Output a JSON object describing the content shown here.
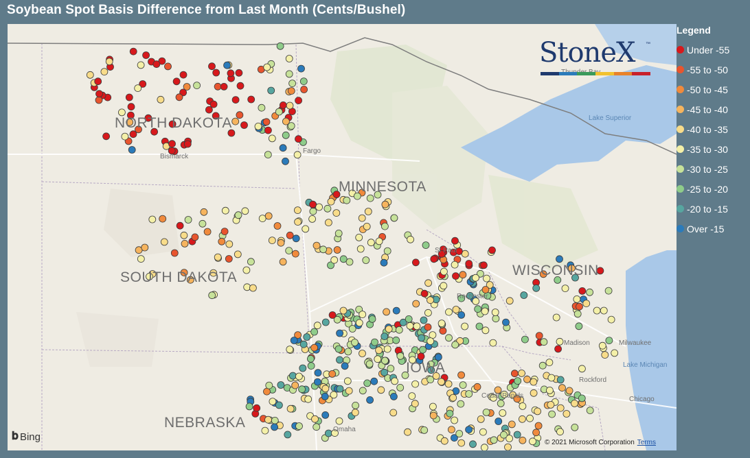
{
  "title": "Soybean Spot Basis Difference from Last Month (Cents/Bushel)",
  "legend": {
    "title": "Legend",
    "items": [
      {
        "label": "Under -55",
        "color": "#d7191c"
      },
      {
        "label": "-55 to -50",
        "color": "#e8552e"
      },
      {
        "label": "-50 to -45",
        "color": "#f08a3c"
      },
      {
        "label": "-45 to -40",
        "color": "#f6b45e"
      },
      {
        "label": "-40 to -35",
        "color": "#f8dc8a"
      },
      {
        "label": "-35 to -30",
        "color": "#f4f0a8"
      },
      {
        "label": "-30 to -25",
        "color": "#c7e29a"
      },
      {
        "label": "-25 to -20",
        "color": "#8fcc8a"
      },
      {
        "label": "-20 to -15",
        "color": "#57a6a0"
      },
      {
        "label": "Over -15",
        "color": "#2b7bba"
      }
    ]
  },
  "map": {
    "states": [
      "NORTH DAKOTA",
      "SOUTH DAKOTA",
      "MINNESOTA",
      "WISCONSIN",
      "NEBRASKA",
      "IOWA"
    ],
    "cities": [
      "Bismarck",
      "Fargo",
      "St Paul",
      "Rochester",
      "Madison",
      "Milwaukee",
      "Rockford",
      "Chicago",
      "Cedar Rapids",
      "Omaha",
      "Thunder Bay"
    ],
    "water": [
      "Lake Superior",
      "Lake Michigan"
    ],
    "attribution": "© 2021 Microsoft Corporation",
    "terms": "Terms",
    "bing": "Bing"
  },
  "logo": {
    "text": "StoneX",
    "tm": "™",
    "bar_colors": [
      "#1f3a6e",
      "#2b7bba",
      "#3a9a5b",
      "#f2c12e",
      "#e8822a",
      "#c8202a"
    ]
  },
  "chart_data": {
    "type": "scatter",
    "title": "Soybean Spot Basis Difference from Last Month (Cents/Bushel)",
    "legend_placement": "right",
    "categories": [
      "Under -55",
      "-55 to -50",
      "-50 to -45",
      "-45 to -40",
      "-40 to -35",
      "-35 to -30",
      "-30 to -25",
      "-25 to -20",
      "-20 to -15",
      "Over -15"
    ],
    "region_summary": [
      {
        "region": "NORTH DAKOTA",
        "dominant_category": "Under -55"
      },
      {
        "region": "SOUTH DAKOTA",
        "dominant_category": "-40 to -35"
      },
      {
        "region": "MINNESOTA",
        "dominant_category": "-25 to -20"
      },
      {
        "region": "WISCONSIN",
        "dominant_category": "-35 to -30"
      },
      {
        "region": "IOWA",
        "dominant_category": "Over -15"
      },
      {
        "region": "NEBRASKA",
        "dominant_category": "-30 to -25"
      }
    ]
  }
}
